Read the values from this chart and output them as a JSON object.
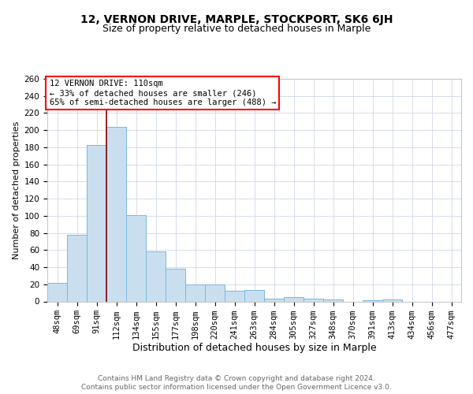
{
  "title": "12, VERNON DRIVE, MARPLE, STOCKPORT, SK6 6JH",
  "subtitle": "Size of property relative to detached houses in Marple",
  "xlabel": "Distribution of detached houses by size in Marple",
  "ylabel": "Number of detached properties",
  "bin_labels": [
    "48sqm",
    "69sqm",
    "91sqm",
    "112sqm",
    "134sqm",
    "155sqm",
    "177sqm",
    "198sqm",
    "220sqm",
    "241sqm",
    "263sqm",
    "284sqm",
    "305sqm",
    "327sqm",
    "348sqm",
    "370sqm",
    "391sqm",
    "413sqm",
    "434sqm",
    "456sqm",
    "477sqm"
  ],
  "bar_values": [
    22,
    78,
    183,
    204,
    101,
    58,
    38,
    20,
    20,
    12,
    13,
    3,
    5,
    3,
    2,
    0,
    1,
    2,
    0,
    0,
    0
  ],
  "bar_color": "#c9dff0",
  "bar_edgecolor": "#7ab8d9",
  "property_line_x": 2.5,
  "annotation_line1": "12 VERNON DRIVE: 110sqm",
  "annotation_line2": "← 33% of detached houses are smaller (246)",
  "annotation_line3": "65% of semi-detached houses are larger (488) →",
  "annotation_box_color": "white",
  "annotation_box_edgecolor": "red",
  "vline_color": "#8b0000",
  "ylim": [
    0,
    260
  ],
  "yticks": [
    0,
    20,
    40,
    60,
    80,
    100,
    120,
    140,
    160,
    180,
    200,
    220,
    240,
    260
  ],
  "footer_line1": "Contains HM Land Registry data © Crown copyright and database right 2024.",
  "footer_line2": "Contains public sector information licensed under the Open Government Licence v3.0.",
  "title_fontsize": 10,
  "subtitle_fontsize": 9,
  "xlabel_fontsize": 9,
  "ylabel_fontsize": 8,
  "tick_fontsize": 7.5,
  "footer_fontsize": 6.5,
  "annotation_fontsize": 7.5,
  "background_color": "white",
  "grid_color": "#d0d8e8"
}
